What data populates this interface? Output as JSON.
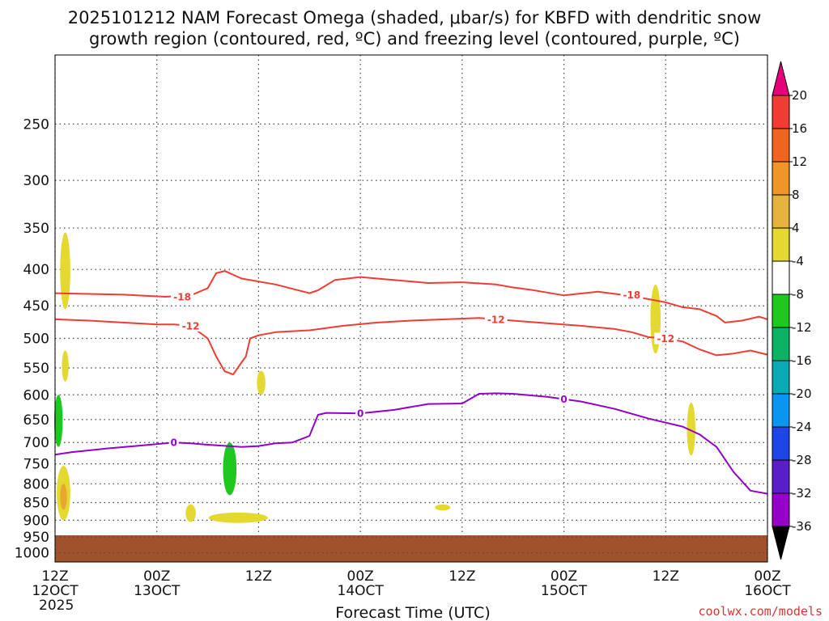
{
  "title_line1": "2025101212 NAM Forecast Omega (shaded, μbar/s) for KBFD with dendritic snow",
  "title_line2": "growth region (contoured, red, ºC) and freezing level (contoured, purple, ºC)",
  "credit": "coolwx.com/models",
  "chart_data": {
    "type": "contour",
    "xlabel": "Forecast Time (UTC)",
    "x_ticks": [
      {
        "hour": 12,
        "line1": "12Z",
        "line2": "12OCT",
        "line3": "2025"
      },
      {
        "hour": 24,
        "line1": "00Z",
        "line2": "13OCT",
        "line3": ""
      },
      {
        "hour": 36,
        "line1": "12Z",
        "line2": "",
        "line3": ""
      },
      {
        "hour": 48,
        "line1": "00Z",
        "line2": "14OCT",
        "line3": ""
      },
      {
        "hour": 60,
        "line1": "12Z",
        "line2": "",
        "line3": ""
      },
      {
        "hour": 72,
        "line1": "00Z",
        "line2": "15OCT",
        "line3": ""
      },
      {
        "hour": 84,
        "line1": "12Z",
        "line2": "",
        "line3": ""
      },
      {
        "hour": 96,
        "line1": "00Z",
        "line2": "16OCT",
        "line3": ""
      }
    ],
    "x_range_hours": [
      12,
      96
    ],
    "y_ticks": [
      "250",
      "300",
      "350",
      "400",
      "450",
      "500",
      "550",
      "600",
      "650",
      "700",
      "750",
      "800",
      "850",
      "900",
      "950",
      "1000"
    ],
    "y_range_hpa": [
      200,
      1030
    ],
    "y_scale": "log-pressure",
    "grid": true,
    "ground_pressure_hpa": 945,
    "ground_color": "#a0522d",
    "contours": [
      {
        "level": -18,
        "color": "#f03c32",
        "label": "-18",
        "points": [
          [
            12,
            432
          ],
          [
            16,
            433
          ],
          [
            20,
            434
          ],
          [
            25,
            437
          ],
          [
            28,
            435
          ],
          [
            30,
            425
          ],
          [
            31,
            405
          ],
          [
            32,
            402
          ],
          [
            34,
            412
          ],
          [
            38,
            420
          ],
          [
            42,
            432
          ],
          [
            43,
            428
          ],
          [
            45,
            414
          ],
          [
            48,
            410
          ],
          [
            50,
            412
          ],
          [
            53,
            415
          ],
          [
            56,
            418
          ],
          [
            60,
            417
          ],
          [
            64,
            420
          ],
          [
            66,
            424
          ],
          [
            68,
            427
          ],
          [
            72,
            435
          ],
          [
            76,
            430
          ],
          [
            80,
            436
          ],
          [
            84,
            445
          ],
          [
            86,
            452
          ],
          [
            88,
            455
          ],
          [
            90,
            465
          ],
          [
            91,
            475
          ],
          [
            93,
            472
          ],
          [
            95,
            466
          ],
          [
            96,
            470
          ]
        ],
        "label_points": [
          [
            27,
            437
          ],
          [
            80,
            434
          ]
        ]
      },
      {
        "level": -12,
        "color": "#f03c32",
        "label": "-12",
        "points": [
          [
            12,
            470
          ],
          [
            16,
            472
          ],
          [
            20,
            475
          ],
          [
            24,
            478
          ],
          [
            26,
            478
          ],
          [
            28,
            480
          ],
          [
            30,
            500
          ],
          [
            31,
            530
          ],
          [
            32,
            556
          ],
          [
            33,
            562
          ],
          [
            34,
            540
          ],
          [
            34.5,
            530
          ],
          [
            35,
            500
          ],
          [
            36,
            495
          ],
          [
            38,
            490
          ],
          [
            42,
            487
          ],
          [
            46,
            480
          ],
          [
            50,
            475
          ],
          [
            54,
            472
          ],
          [
            58,
            470
          ],
          [
            62,
            468
          ],
          [
            66,
            472
          ],
          [
            70,
            476
          ],
          [
            74,
            480
          ],
          [
            78,
            485
          ],
          [
            80,
            490
          ],
          [
            82,
            498
          ],
          [
            84,
            500
          ],
          [
            86,
            505
          ],
          [
            88,
            518
          ],
          [
            90,
            528
          ],
          [
            92,
            525
          ],
          [
            94,
            520
          ],
          [
            96,
            527
          ]
        ],
        "label_points": [
          [
            28,
            480
          ],
          [
            64,
            470
          ],
          [
            84,
            500
          ]
        ]
      },
      {
        "level": 0,
        "color": "#9400c8",
        "label": "0",
        "points": [
          [
            12,
            728
          ],
          [
            14,
            722
          ],
          [
            18,
            714
          ],
          [
            22,
            707
          ],
          [
            26,
            700
          ],
          [
            28,
            702
          ],
          [
            30,
            705
          ],
          [
            34,
            710
          ],
          [
            36,
            708
          ],
          [
            38,
            702
          ],
          [
            40,
            700
          ],
          [
            42,
            685
          ],
          [
            43,
            640
          ],
          [
            44,
            636
          ],
          [
            48,
            637
          ],
          [
            52,
            630
          ],
          [
            56,
            618
          ],
          [
            60,
            617
          ],
          [
            62,
            598
          ],
          [
            64,
            597
          ],
          [
            66,
            598
          ],
          [
            70,
            604
          ],
          [
            74,
            613
          ],
          [
            78,
            628
          ],
          [
            82,
            648
          ],
          [
            86,
            665
          ],
          [
            88,
            682
          ],
          [
            90,
            710
          ],
          [
            92,
            770
          ],
          [
            94,
            818
          ],
          [
            96,
            826
          ]
        ],
        "label_points": [
          [
            26,
            700
          ],
          [
            48,
            637
          ],
          [
            72,
            608
          ]
        ]
      }
    ],
    "shaded_blobs": [
      {
        "cx": 13.2,
        "top": 355,
        "bottom": 455,
        "half_width_h": 0.6,
        "color": "#e4d930"
      },
      {
        "cx": 13.2,
        "top": 520,
        "bottom": 575,
        "half_width_h": 0.4,
        "color": "#e4d930"
      },
      {
        "cx": 12.4,
        "top": 600,
        "bottom": 710,
        "half_width_h": 0.5,
        "color": "#1ec81e"
      },
      {
        "cx": 13.0,
        "top": 755,
        "bottom": 900,
        "half_width_h": 0.8,
        "color": "#e4d930"
      },
      {
        "cx": 13.0,
        "top": 800,
        "bottom": 870,
        "half_width_h": 0.4,
        "color": "#e6a82e"
      },
      {
        "cx": 28.0,
        "top": 855,
        "bottom": 905,
        "half_width_h": 0.6,
        "color": "#e4d930"
      },
      {
        "cx": 32.6,
        "top": 700,
        "bottom": 830,
        "half_width_h": 0.8,
        "color": "#1ec81e"
      },
      {
        "cx": 33.6,
        "top": 878,
        "bottom": 908,
        "half_width_h": 3.5,
        "color": "#e4d930"
      },
      {
        "cx": 36.3,
        "top": 555,
        "bottom": 600,
        "half_width_h": 0.5,
        "color": "#e4d930"
      },
      {
        "cx": 57.7,
        "top": 855,
        "bottom": 872,
        "half_width_h": 0.9,
        "color": "#e4d930"
      },
      {
        "cx": 82.8,
        "top": 420,
        "bottom": 525,
        "half_width_h": 0.6,
        "color": "#e4d930"
      },
      {
        "cx": 87.0,
        "top": 615,
        "bottom": 730,
        "half_width_h": 0.5,
        "color": "#e4d930"
      }
    ],
    "colorbar": {
      "labels": [
        "20",
        "16",
        "12",
        "8",
        "4",
        "-4",
        "-8",
        "-12",
        "-16",
        "-20",
        "-24",
        "-28",
        "-32",
        "-36"
      ],
      "top_color": "#e6007a",
      "bottom_color": "#000000",
      "colors": [
        "#f03c32",
        "#f0641e",
        "#f09628",
        "#e6b43c",
        "#e4d930",
        "#ffffff",
        "#1ec81e",
        "#0ab464",
        "#0aaab4",
        "#0a96f0",
        "#1e46e6",
        "#5a1ec8",
        "#9600c8",
        "#a0a0a0"
      ]
    }
  }
}
